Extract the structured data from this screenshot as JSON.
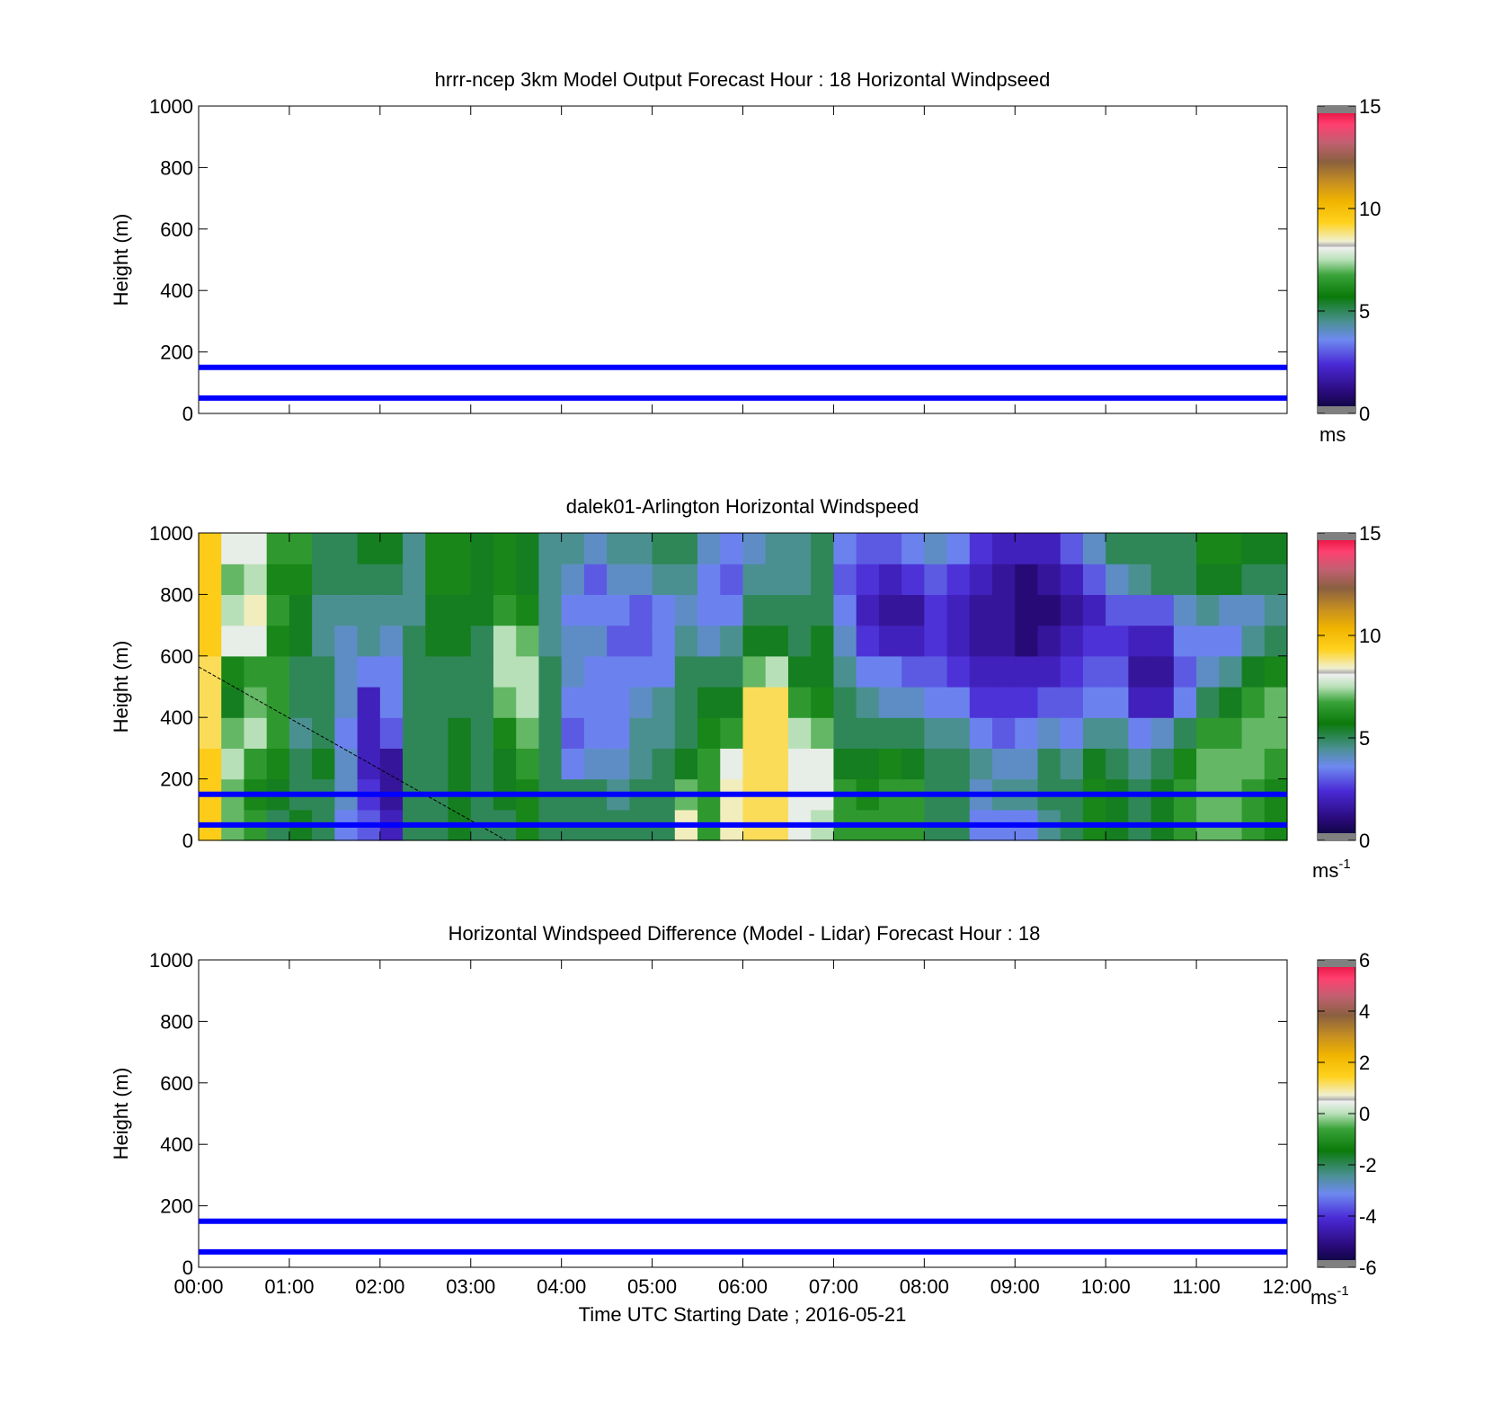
{
  "figure": {
    "x_ticks": [
      "00:00",
      "01:00",
      "02:00",
      "03:00",
      "04:00",
      "05:00",
      "06:00",
      "07:00",
      "08:00",
      "09:00",
      "10:00",
      "11:00",
      "12:00"
    ],
    "x_label": "Time UTC  Starting Date ; 2016-05-21"
  },
  "chart_data": [
    {
      "type": "heatmap",
      "title": "hrrr-ncep 3km Model Output   Forecast Hour : 18 Horizontal Windpseed",
      "ylabel": "Height (m)",
      "xlim": [
        0,
        12
      ],
      "ylim": [
        0,
        1000
      ],
      "y_ticks": [
        0,
        200,
        400,
        600,
        800,
        1000
      ],
      "colorbar": {
        "range": [
          0,
          15
        ],
        "ticks": [
          0,
          5,
          10,
          15
        ],
        "unit": "ms",
        "unit_sup": ""
      },
      "reference_lines": [
        50,
        150
      ],
      "grid": false,
      "data": null
    },
    {
      "type": "heatmap",
      "title": "dalek01-Arlington  Horizontal Windspeed",
      "ylabel": "Height (m)",
      "xlim": [
        0,
        12
      ],
      "ylim": [
        0,
        1000
      ],
      "y_ticks": [
        0,
        200,
        400,
        600,
        800,
        1000
      ],
      "colorbar": {
        "range": [
          0,
          15
        ],
        "ticks": [
          0,
          5,
          10,
          15
        ],
        "unit": "ms",
        "unit_sup": "-1"
      },
      "reference_lines": [
        50,
        150
      ],
      "grid": false,
      "time_hours": [
        0.0,
        0.25,
        0.5,
        0.75,
        1.0,
        1.25,
        1.5,
        1.75,
        2.0,
        2.25,
        2.5,
        2.75,
        3.0,
        3.25,
        3.5,
        3.75,
        4.0,
        4.25,
        4.5,
        4.75,
        5.0,
        5.25,
        5.5,
        5.75,
        6.0,
        6.25,
        6.5,
        6.75,
        7.0,
        7.25,
        7.5,
        7.75,
        8.0,
        8.25,
        8.5,
        8.75,
        9.0,
        9.25,
        9.5,
        9.75,
        10.0,
        10.25,
        10.5,
        10.75,
        11.0,
        11.25,
        11.5,
        11.75
      ],
      "heights_m": [
        0,
        100,
        200,
        300,
        400,
        500,
        600,
        700,
        800,
        900
      ],
      "windspeed_ms": [
        [
          9.5,
          9.5,
          9.5,
          9.0,
          9.0,
          9.0,
          9.5,
          9.5,
          9.5,
          9.5
        ],
        [
          7.0,
          7.0,
          7.5,
          7.0,
          5.5,
          6.0,
          8.0,
          7.5,
          7.0,
          8.0
        ],
        [
          6.5,
          6.0,
          6.5,
          7.5,
          7.0,
          6.5,
          8.0,
          8.5,
          7.5,
          8.0
        ],
        [
          5.0,
          5.5,
          6.0,
          6.5,
          6.5,
          6.5,
          6.0,
          6.5,
          6.0,
          6.5
        ],
        [
          5.5,
          5.0,
          5.0,
          4.5,
          5.0,
          5.0,
          5.5,
          5.5,
          6.0,
          6.5
        ],
        [
          5.0,
          5.0,
          5.5,
          5.0,
          5.0,
          5.0,
          4.5,
          4.5,
          5.0,
          5.0
        ],
        [
          3.5,
          4.0,
          4.0,
          3.5,
          4.0,
          4.0,
          4.0,
          4.5,
          5.0,
          5.0
        ],
        [
          3.0,
          2.5,
          2.0,
          2.0,
          2.0,
          3.5,
          4.5,
          4.5,
          5.0,
          5.5
        ],
        [
          2.0,
          1.5,
          1.5,
          3.0,
          3.5,
          3.5,
          4.0,
          4.5,
          5.0,
          5.5
        ],
        [
          5.0,
          5.0,
          5.0,
          5.0,
          5.0,
          5.0,
          5.0,
          4.5,
          4.5,
          4.5
        ],
        [
          5.0,
          5.0,
          5.0,
          5.0,
          5.0,
          5.0,
          5.5,
          5.5,
          6.0,
          6.0
        ],
        [
          5.5,
          5.5,
          5.5,
          5.5,
          5.0,
          5.0,
          5.5,
          5.5,
          6.0,
          6.0
        ],
        [
          5.0,
          5.0,
          5.0,
          5.0,
          5.0,
          5.0,
          5.0,
          5.5,
          5.5,
          5.5
        ],
        [
          5.0,
          5.5,
          5.5,
          6.0,
          7.0,
          7.5,
          7.5,
          6.5,
          6.0,
          6.0
        ],
        [
          6.0,
          6.0,
          6.5,
          7.0,
          7.5,
          7.5,
          7.0,
          6.0,
          5.5,
          5.5
        ],
        [
          5.0,
          5.0,
          5.0,
          5.0,
          5.0,
          5.0,
          4.5,
          4.5,
          4.5,
          4.5
        ],
        [
          5.0,
          5.0,
          3.5,
          3.0,
          3.5,
          4.0,
          4.0,
          3.5,
          4.0,
          4.5
        ],
        [
          5.0,
          5.0,
          4.0,
          3.5,
          3.5,
          3.5,
          4.0,
          3.5,
          3.0,
          4.0
        ],
        [
          5.0,
          4.5,
          4.0,
          3.5,
          3.5,
          3.5,
          3.0,
          3.5,
          4.0,
          4.5
        ],
        [
          5.0,
          5.0,
          4.5,
          4.5,
          4.0,
          3.5,
          3.0,
          3.0,
          4.0,
          4.5
        ],
        [
          5.0,
          5.0,
          5.0,
          4.5,
          4.5,
          3.5,
          3.5,
          3.5,
          4.5,
          5.0
        ],
        [
          8.5,
          7.0,
          5.5,
          5.0,
          5.0,
          5.0,
          4.5,
          4.0,
          4.5,
          5.0
        ],
        [
          6.5,
          6.5,
          6.5,
          6.0,
          5.5,
          5.0,
          4.0,
          3.5,
          3.5,
          4.0
        ],
        [
          8.5,
          8.5,
          8.0,
          6.5,
          5.5,
          5.0,
          4.5,
          3.5,
          3.0,
          3.5
        ],
        [
          9.0,
          9.0,
          9.0,
          9.0,
          9.0,
          7.0,
          5.5,
          5.0,
          4.5,
          4.0
        ],
        [
          9.0,
          9.0,
          9.0,
          9.0,
          9.0,
          7.5,
          5.5,
          5.0,
          4.5,
          4.5
        ],
        [
          8.0,
          8.0,
          8.0,
          7.5,
          6.5,
          5.5,
          5.0,
          5.0,
          4.5,
          4.5
        ],
        [
          7.5,
          8.0,
          8.0,
          7.0,
          6.0,
          5.5,
          5.5,
          5.0,
          5.0,
          5.0
        ],
        [
          6.5,
          6.5,
          5.5,
          5.0,
          5.0,
          4.5,
          4.0,
          3.5,
          3.0,
          3.5
        ],
        [
          6.5,
          6.0,
          5.5,
          5.0,
          4.5,
          3.5,
          2.5,
          2.0,
          2.5,
          3.0
        ],
        [
          6.5,
          6.5,
          6.0,
          5.0,
          4.0,
          3.5,
          2.0,
          1.5,
          2.0,
          3.0
        ],
        [
          6.5,
          6.5,
          5.5,
          5.0,
          4.0,
          3.0,
          2.0,
          1.5,
          2.5,
          3.5
        ],
        [
          5.0,
          5.0,
          5.0,
          4.5,
          3.5,
          3.0,
          2.5,
          2.5,
          3.0,
          4.0
        ],
        [
          5.0,
          5.0,
          5.0,
          4.5,
          3.5,
          2.5,
          2.0,
          2.0,
          2.5,
          3.5
        ],
        [
          3.5,
          4.0,
          4.5,
          3.5,
          2.5,
          2.0,
          1.5,
          1.5,
          2.0,
          2.5
        ],
        [
          3.5,
          4.5,
          4.0,
          3.0,
          2.5,
          2.0,
          1.5,
          1.5,
          1.5,
          2.0
        ],
        [
          3.5,
          4.5,
          4.0,
          3.5,
          2.5,
          2.0,
          1.0,
          1.0,
          1.0,
          2.0
        ],
        [
          4.5,
          5.0,
          5.0,
          4.0,
          3.0,
          2.0,
          1.5,
          1.0,
          1.5,
          2.0
        ],
        [
          5.0,
          5.0,
          4.5,
          3.5,
          3.0,
          2.5,
          2.0,
          1.5,
          2.0,
          3.0
        ],
        [
          6.0,
          6.0,
          5.5,
          4.5,
          3.5,
          3.0,
          2.5,
          2.0,
          3.0,
          4.0
        ],
        [
          5.5,
          5.5,
          5.0,
          4.5,
          3.5,
          3.0,
          2.5,
          3.0,
          4.0,
          5.0
        ],
        [
          5.0,
          5.0,
          4.5,
          3.5,
          2.0,
          1.5,
          2.0,
          3.0,
          4.5,
          5.0
        ],
        [
          5.5,
          5.5,
          5.0,
          4.0,
          2.0,
          1.5,
          2.0,
          3.0,
          5.0,
          5.0
        ],
        [
          6.5,
          6.5,
          6.0,
          5.0,
          3.5,
          3.0,
          3.5,
          4.0,
          5.0,
          5.0
        ],
        [
          7.0,
          7.0,
          7.0,
          6.5,
          5.0,
          4.0,
          3.5,
          4.5,
          5.5,
          6.0
        ],
        [
          7.0,
          7.0,
          7.0,
          6.5,
          5.5,
          4.5,
          3.5,
          4.0,
          5.5,
          6.0
        ],
        [
          6.5,
          6.5,
          7.0,
          7.0,
          6.5,
          5.5,
          4.5,
          4.0,
          5.0,
          5.5
        ],
        [
          6.0,
          6.0,
          6.5,
          7.0,
          7.0,
          6.0,
          5.0,
          4.5,
          5.0,
          5.5
        ]
      ]
    },
    {
      "type": "heatmap",
      "title": "Horizontal Windspeed Difference (Model - Lidar) Forecast Hour : 18",
      "ylabel": "Height (m)",
      "xlim": [
        0,
        12
      ],
      "ylim": [
        0,
        1000
      ],
      "y_ticks": [
        0,
        200,
        400,
        600,
        800,
        1000
      ],
      "colorbar": {
        "range": [
          -6,
          6
        ],
        "ticks": [
          -6,
          -4,
          -2,
          0,
          2,
          4,
          6
        ],
        "unit": "ms",
        "unit_sup": "-1"
      },
      "reference_lines": [
        50,
        150
      ],
      "grid": false,
      "data": null
    }
  ],
  "colors": {
    "reference_line": "#0000ff",
    "colormap": [
      "#7f7f7f",
      "#050530",
      "#2a0a7a",
      "#4a2ad6",
      "#6e8af0",
      "#4a9090",
      "#0a7a0a",
      "#3aa33a",
      "#b8e0b8",
      "#f0f0f0",
      "#ffd21e",
      "#f0b400",
      "#c89020",
      "#8a6040",
      "#c06070",
      "#ff4070",
      "#e00030",
      "#7f7f7f"
    ]
  }
}
